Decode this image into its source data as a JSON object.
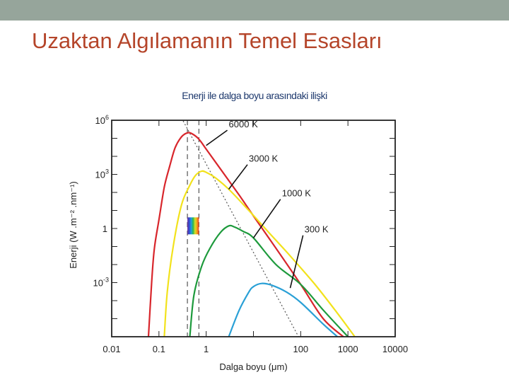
{
  "slide": {
    "title": "Uzaktan Algılamanın Temel Esasları",
    "colors": {
      "top_bar": "#96a59b",
      "title": "#b5452a",
      "chart_title": "#1f3a6e"
    }
  },
  "chart_data": {
    "type": "line",
    "title": "Enerji ile dalga boyu arasındaki ilişki",
    "xlabel": "Dalga boyu (μm)",
    "ylabel": "Enerji (W .m⁻² .nm⁻¹)",
    "x_scale": "log",
    "y_scale": "log",
    "xlim": [
      0.01,
      10000
    ],
    "ylim": [
      1e-06,
      1000000
    ],
    "x_ticks": [
      "0.01",
      "0.1",
      "1",
      "100",
      "1000",
      "10000"
    ],
    "x_tick_values": [
      0.01,
      0.1,
      1,
      100,
      1000,
      10000
    ],
    "y_ticks": [
      {
        "base": "10",
        "exp": "6",
        "value": 1000000
      },
      {
        "base": "10",
        "exp": "3",
        "value": 1000
      },
      {
        "base": "1",
        "exp": "",
        "value": 1
      },
      {
        "base": "10",
        "exp": "-3",
        "value": 0.001
      }
    ],
    "series": [
      {
        "name": "6000 K",
        "color": "#d8262c",
        "points": [
          [
            0.06,
            1e-06
          ],
          [
            0.07,
            0.001
          ],
          [
            0.08,
            0.08
          ],
          [
            0.1,
            3
          ],
          [
            0.13,
            200
          ],
          [
            0.17,
            3000
          ],
          [
            0.22,
            30000
          ],
          [
            0.3,
            120000
          ],
          [
            0.4,
            200000
          ],
          [
            0.5,
            180000
          ],
          [
            0.7,
            90000
          ],
          [
            1,
            25000
          ],
          [
            2,
            2000
          ],
          [
            5,
            70
          ],
          [
            10,
            5
          ],
          [
            30,
            0.08
          ],
          [
            100,
            0.0008
          ],
          [
            300,
            1e-05
          ],
          [
            800,
            1e-06
          ]
        ]
      },
      {
        "name": "3000 K",
        "color": "#f2e21c",
        "points": [
          [
            0.13,
            1e-06
          ],
          [
            0.15,
            0.0003
          ],
          [
            0.2,
            0.1
          ],
          [
            0.3,
            20
          ],
          [
            0.45,
            250
          ],
          [
            0.6,
            900
          ],
          [
            0.8,
            1500
          ],
          [
            1,
            1300
          ],
          [
            1.5,
            700
          ],
          [
            3,
            150
          ],
          [
            8,
            10
          ],
          [
            20,
            0.7
          ],
          [
            60,
            0.03
          ],
          [
            200,
            0.0008
          ],
          [
            600,
            2e-05
          ],
          [
            1400,
            1e-06
          ]
        ]
      },
      {
        "name": "1000 K",
        "color": "#1d9a3c",
        "points": [
          [
            0.45,
            1e-06
          ],
          [
            0.55,
            0.0002
          ],
          [
            0.8,
            0.008
          ],
          [
            1.2,
            0.08
          ],
          [
            2,
            0.6
          ],
          [
            3,
            1.4
          ],
          [
            4,
            1.2
          ],
          [
            6,
            0.7
          ],
          [
            10,
            0.3
          ],
          [
            30,
            0.01
          ],
          [
            100,
            0.0008
          ],
          [
            300,
            3e-05
          ],
          [
            1000,
            1e-06
          ]
        ]
      },
      {
        "name": "300 K",
        "color": "#2aa0d6",
        "points": [
          [
            3,
            1e-06
          ],
          [
            5,
            3e-05
          ],
          [
            8,
            0.0003
          ],
          [
            10,
            0.0006
          ],
          [
            15,
            0.0009
          ],
          [
            25,
            0.0007
          ],
          [
            50,
            0.0003
          ],
          [
            100,
            8e-05
          ],
          [
            300,
            5e-06
          ],
          [
            600,
            1e-06
          ]
        ]
      }
    ],
    "wien_line": {
      "color": "#555555",
      "style": "dotted",
      "points": [
        [
          0.2,
          10000000
        ],
        [
          90,
          1e-06
        ]
      ]
    },
    "visible_band": {
      "x_min": 0.4,
      "x_max": 0.7,
      "style": "dashed"
    },
    "spectrum_swatch": {
      "y_center": 1.4,
      "colors": [
        "#6a2fa0",
        "#2f4fd4",
        "#1fa0e0",
        "#2fb84a",
        "#d4e02a",
        "#f2a21c",
        "#e8381c"
      ]
    },
    "label_pointers": [
      {
        "series": "6000 K",
        "label_xy": [
          3,
          400000
        ],
        "target_xy": [
          1,
          40000
        ]
      },
      {
        "series": "3000 K",
        "label_xy": [
          8,
          5000
        ],
        "target_xy": [
          3,
          150
        ]
      },
      {
        "series": "1000 K",
        "label_xy": [
          40,
          60
        ],
        "target_xy": [
          10,
          0.3
        ]
      },
      {
        "series": "300 K",
        "label_xy": [
          120,
          0.6
        ],
        "target_xy": [
          60,
          0.0005
        ]
      }
    ],
    "grid": false,
    "legend": "inline labels"
  }
}
